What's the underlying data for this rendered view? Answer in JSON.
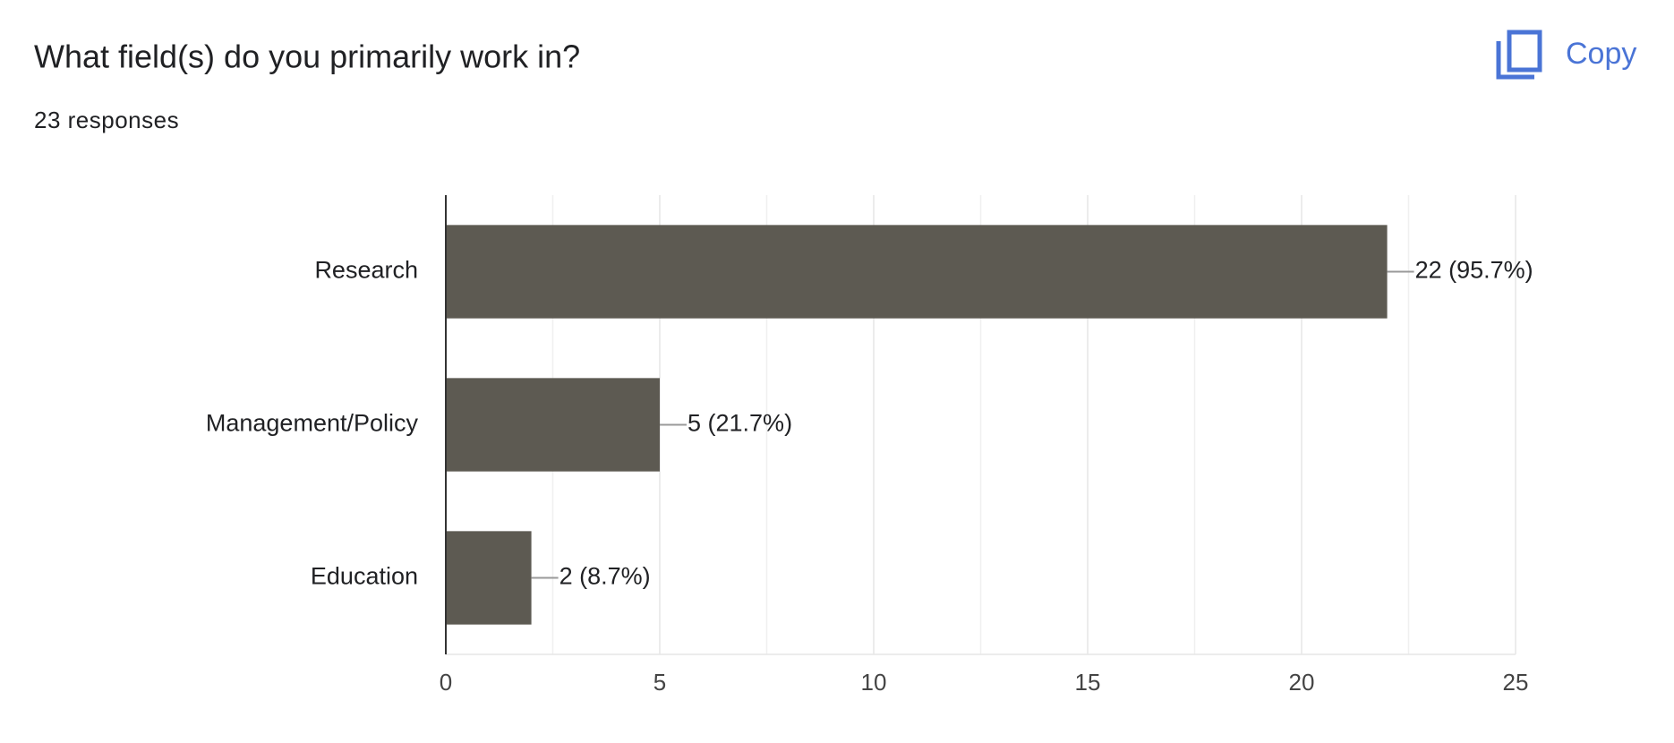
{
  "copy_button": "Copy",
  "chart_data": {
    "type": "hbar",
    "title": "What field(s) do you primarily work in?",
    "subtitle": "23 responses",
    "categories": [
      "Research",
      "Management/Policy",
      "Education"
    ],
    "values": [
      22,
      5,
      2
    ],
    "value_labels": [
      "22 (95.7%)",
      "5 (21.7%)",
      "2 (8.7%)"
    ],
    "color": "#5d5a52",
    "xlim": [
      0,
      25
    ],
    "xticks": [
      0,
      5,
      10,
      15,
      20,
      25
    ],
    "grid": true
  }
}
